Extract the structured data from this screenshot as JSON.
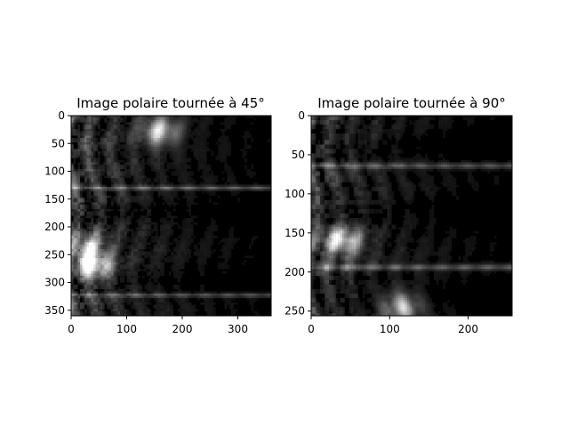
{
  "chart_data": [
    {
      "type": "heatmap",
      "title": "Image polaire tournée à 45°",
      "xlabel": "",
      "ylabel": "",
      "xlim": [
        0,
        360
      ],
      "ylim": [
        360,
        0
      ],
      "xticks": [
        0,
        100,
        200,
        300
      ],
      "yticks": [
        0,
        50,
        100,
        150,
        200,
        250,
        300,
        350
      ],
      "colormap": "gray",
      "grid": false,
      "hot_spots": [
        {
          "x": 40,
          "y": 272,
          "intensity": 1.0
        },
        {
          "x": 160,
          "y": 28,
          "intensity": 0.9
        },
        {
          "x": 30,
          "y": 240,
          "intensity": 0.75
        }
      ],
      "bright_bands_y": [
        130,
        323
      ],
      "dark_bands_y": [
        175,
        300
      ]
    },
    {
      "type": "heatmap",
      "title": "Image polaire tournée à 90°",
      "xlabel": "",
      "ylabel": "",
      "xlim": [
        0,
        256
      ],
      "ylim": [
        256,
        0
      ],
      "xticks": [
        0,
        100,
        200
      ],
      "yticks": [
        0,
        50,
        100,
        150,
        200,
        250
      ],
      "colormap": "gray",
      "grid": false,
      "hot_spots": [
        {
          "x": 40,
          "y": 160,
          "intensity": 1.0
        },
        {
          "x": 115,
          "y": 245,
          "intensity": 0.85
        }
      ],
      "bright_bands_y": [
        64,
        194
      ],
      "dark_bands_y": [
        40,
        125,
        230
      ]
    }
  ]
}
